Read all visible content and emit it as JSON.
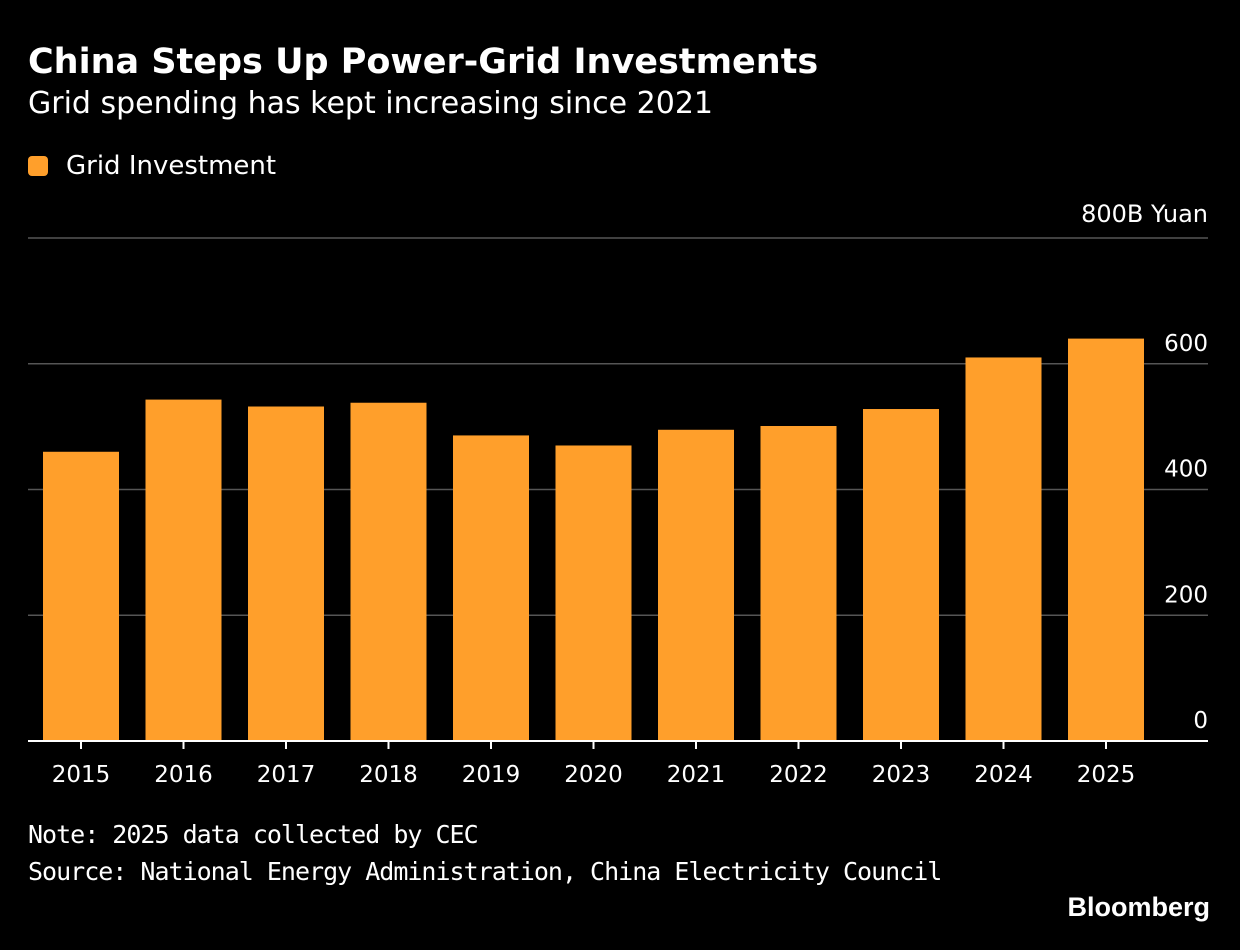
{
  "title": "China Steps Up Power-Grid Investments",
  "subtitle": "Grid spending has kept increasing since 2021",
  "footer": {
    "note": "Note: 2025 data collected by CEC",
    "source": "Source: National Energy Administration, China Electricity Council",
    "brand": "Bloomberg"
  },
  "colors": {
    "background": "#000000",
    "bar": "#FF9F2B",
    "gridline": "#555555",
    "text": "#ffffff"
  },
  "chart_data": {
    "type": "bar",
    "categories": [
      "2015",
      "2016",
      "2017",
      "2018",
      "2019",
      "2020",
      "2021",
      "2022",
      "2023",
      "2024",
      "2025"
    ],
    "series": [
      {
        "name": "Grid Investment",
        "values": [
          460,
          543,
          532,
          538,
          486,
          470,
          495,
          501,
          528,
          610,
          640
        ]
      }
    ],
    "ylim": [
      0,
      800
    ],
    "y_unit_label": "800B Yuan",
    "yticks": [
      0,
      200,
      400,
      600,
      800
    ],
    "ytick_labels": [
      "0",
      "200",
      "400",
      "600",
      "800B Yuan"
    ],
    "grid": true,
    "y_axis_side": "right",
    "legend_position": "top-left"
  }
}
